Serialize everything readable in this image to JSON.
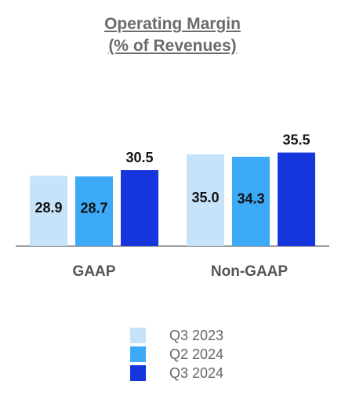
{
  "chart_data": {
    "type": "bar",
    "title": "Operating Margin",
    "subtitle": "(% of Revenues)",
    "categories": [
      "GAAP",
      "Non-GAAP"
    ],
    "series": [
      {
        "name": "Q3 2023",
        "values": [
          28.9,
          35.0
        ],
        "color": "#c6e3fa"
      },
      {
        "name": "Q2 2024",
        "values": [
          28.7,
          34.3
        ],
        "color": "#3daaf7"
      },
      {
        "name": "Q3 2024",
        "values": [
          30.5,
          35.5
        ],
        "color": "#1536dc"
      }
    ],
    "value_labels": [
      [
        "28.9",
        "35.0"
      ],
      [
        "28.7",
        "34.3"
      ],
      [
        "30.5",
        "35.5"
      ]
    ],
    "ylim": [
      0,
      40
    ],
    "grid": false,
    "legend_position": "bottom"
  }
}
